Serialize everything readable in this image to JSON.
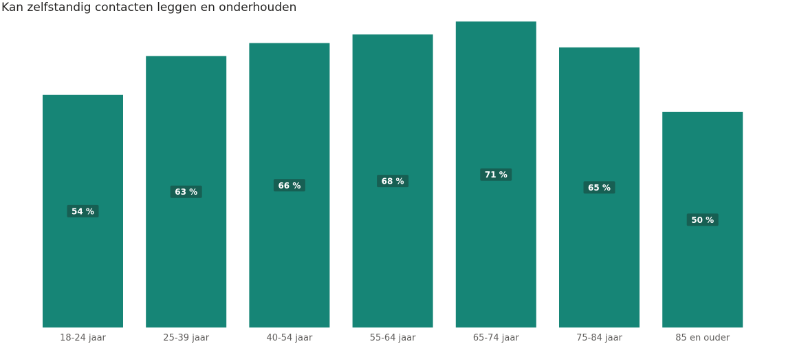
{
  "chart_data": {
    "type": "bar",
    "title": "Kan zelfstandig contacten leggen en onderhouden",
    "xlabel": "",
    "ylabel": "",
    "categories": [
      "18-24 jaar",
      "25-39 jaar",
      "40-54 jaar",
      "55-64 jaar",
      "65-74 jaar",
      "75-84 jaar",
      "85 en ouder"
    ],
    "values": [
      54,
      63,
      66,
      68,
      71,
      65,
      50
    ],
    "data_labels": [
      "54 %",
      "63 %",
      "66 %",
      "68 %",
      "71 %",
      "65 %",
      "50 %"
    ],
    "ylim": [
      0,
      76
    ],
    "grid": false,
    "legend": "none",
    "colors": {
      "bar": "#168576",
      "label_bg": "#175f53",
      "label_text": "#ffffff",
      "tick_text": "#605e5c"
    }
  }
}
